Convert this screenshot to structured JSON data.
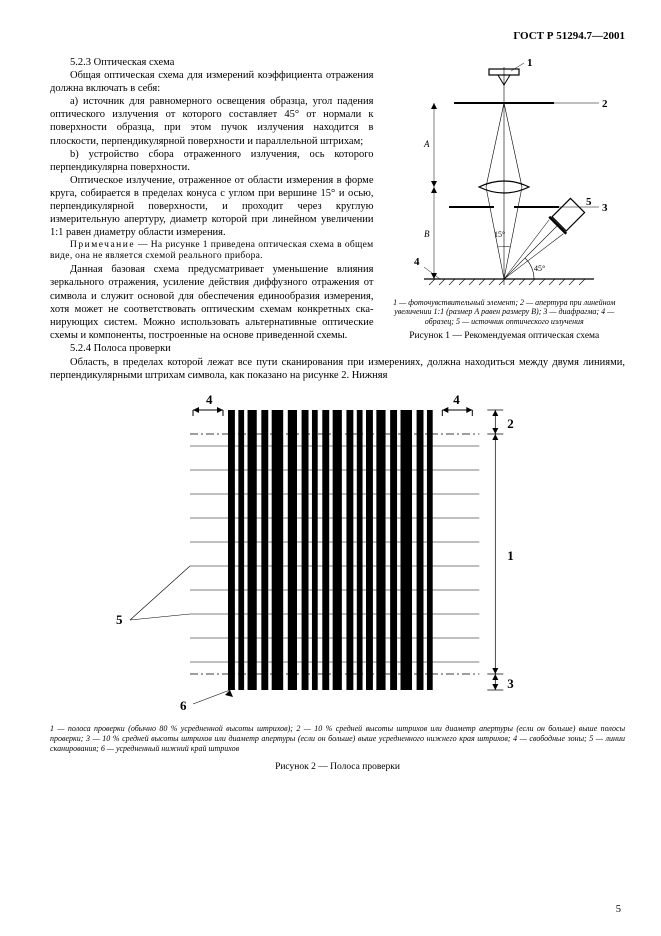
{
  "header": "ГОСТ Р 51294.7—2001",
  "section523_title": "5.2.3 Оптическая схема",
  "section523_intro": "Общая оптическая схема для измерений коэффи­циента отражения должна включать в себя:",
  "section523_a": "a) источник для равномерного освещения образ­ца, угол падения оптического излучения от которого составляет 45° от нормали к поверхности образца, при этом пучок излучения находится в плоскости, перпен­дикулярной поверхности и параллельной штрихам;",
  "section523_b": "b) устройство сбора отраженного излучения, ось которого перпендикулярна поверхности.",
  "section523_p1": "Оптическое излучение, отраженное от области из­мерения в форме круга, собирается в пределах конуса с углом при вершине 15° и осью, перпендикулярной по­верхности, и проходит через круглую измерительную апертуру, диаметр которой при линейном увеличении 1:1 равен диаметру области измерения.",
  "section523_note_label": "Примечание",
  "section523_note": " — На рисунке 1 приведена оптическая схема в общем виде, она не является схемой реального прибора.",
  "section523_p2": "Данная базовая схема предусматривает уменьше­ние влияния зеркального отражения, усиление действия диффузного отражения от символа и служит основой для обеспечения единообразия измерения, хотя может не соответствовать оптическим схемам конкретных ска­нирующих систем. Можно использовать альтернатив­ные оптические схемы и компоненты, построенные на основе приведенной схемы.",
  "fig1_legend": "1 — фоточувствительный элемент; 2 — апертура при линейном увеличении 1:1 (размер A равен размеру B); 3 — диафрагма; 4 — образец; 5 — источник опти­ческого излучения",
  "fig1_title": "Рисунок 1 — Рекомендуемая оптическая схема",
  "section524_title": "5.2.4 Полоса проверки",
  "section524_p1": "Область, в пределах которой лежат все пути сканирования при измерениях, должна находиться между двумя линиями, перпендикулярными штрихам символа, как показано на рисунке 2. Нижняя",
  "fig2_legend": "1 — полоса проверки (обычно 80 % усредненной высоты штрихов); 2 — 10 % средней высоты штрихов или диаметр апертуры (если он больше) выше полосы проверки; 3 — 10 % средней высоты штрихов или диаметр апертуры (если он больше) выше усредненного нижнего края штрихов; 4 — свободные зоны; 5 — линии сканирования; 6 — усредненный нижний край штрихов",
  "fig2_title": "Рисунок 2 — Полоса проверки",
  "page_num": "5",
  "fig1_labels": {
    "l1": "1",
    "l2": "2",
    "l3": "3",
    "l4": "4",
    "l5": "5",
    "a15": "15°",
    "a45": "45°",
    "A": "A",
    "B": "B"
  },
  "fig2_labels": {
    "l1": "1",
    "l2": "2",
    "l3": "3",
    "l4": "4",
    "l4b": "4",
    "l5": "5",
    "l6": "6"
  },
  "barcode_bars": [
    3,
    1.5,
    2.5,
    1.5,
    4,
    2,
    3,
    1.5,
    5,
    2,
    4,
    2,
    3,
    1.5,
    2.5,
    2,
    3,
    1.5,
    4,
    2,
    3,
    1.5,
    2.5,
    1.5,
    3,
    1.5,
    4,
    2,
    3,
    1.5,
    5,
    2,
    3,
    1.5,
    2.5,
    2
  ],
  "colors": {
    "black": "#000000",
    "white": "#ffffff"
  }
}
